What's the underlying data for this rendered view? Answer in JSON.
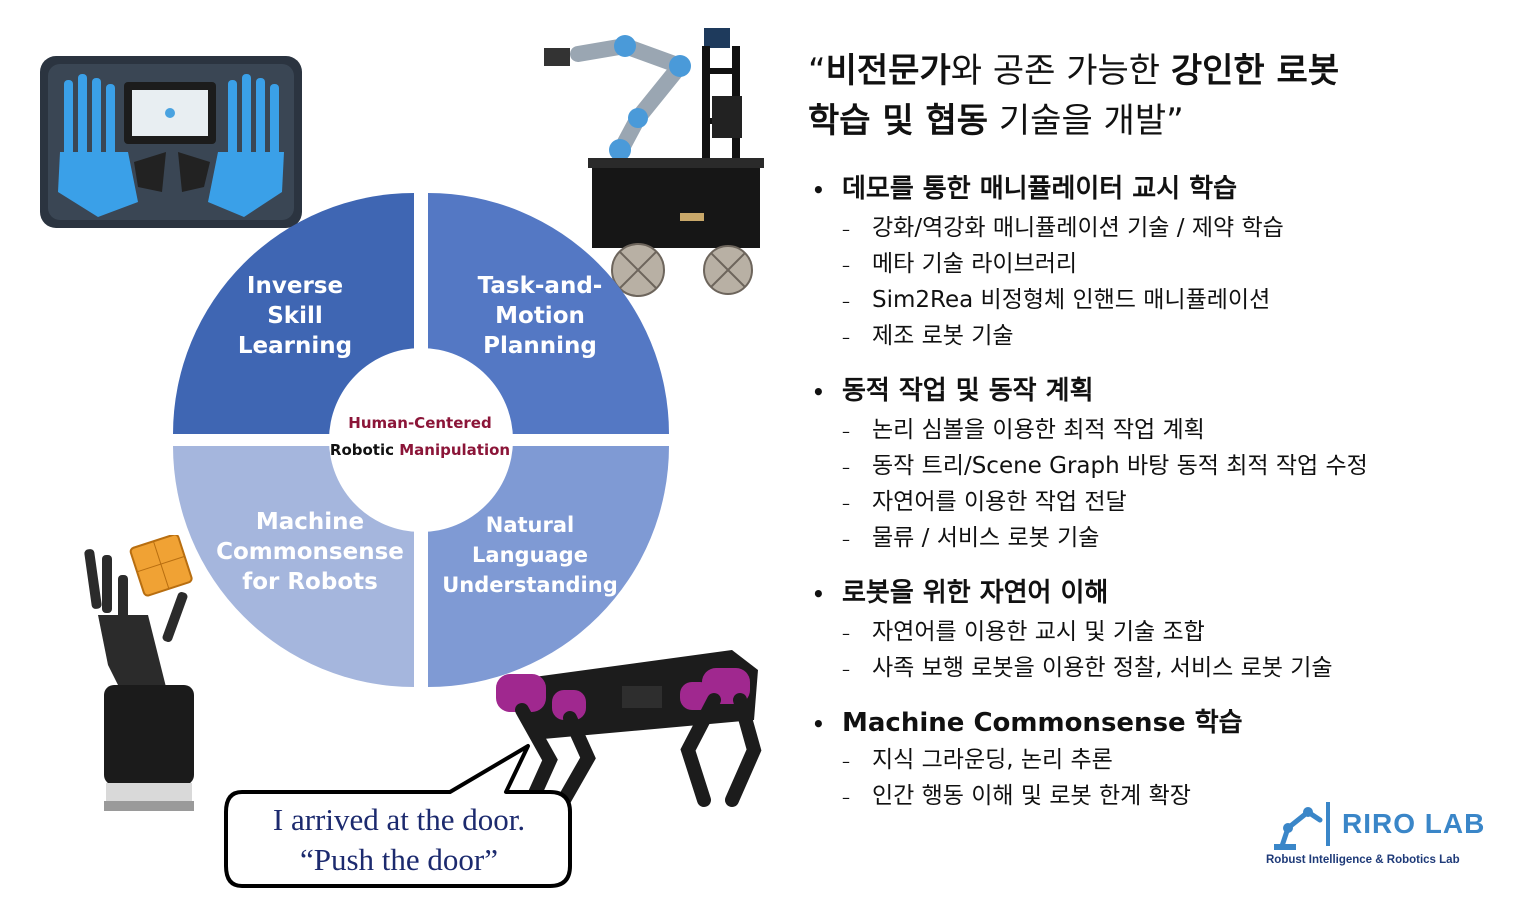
{
  "diagram": {
    "quadrants": [
      {
        "label": "Inverse\nSkill\nLearning",
        "color": "#3f66b3"
      },
      {
        "label": "Task-and-\nMotion\nPlanning",
        "color": "#5478c4"
      },
      {
        "label": "Machine\nCommonsense\nfor Robots",
        "color": "#a5b6dd"
      },
      {
        "label": "Natural Language\nUnderstanding",
        "color": "#7f9ad4"
      }
    ],
    "center_line1": "Human-Centered",
    "center_line2_a": "Robotic ",
    "center_line2_b": "Manipulation"
  },
  "bubble": {
    "line1": "I arrived at the door.",
    "line2": "“Push the door”"
  },
  "headline": {
    "q_open": "“",
    "bold1": "비전문가",
    "t1": "와 공존 가능한 ",
    "bold2": "강인한 로봇",
    "bold3": "학습 및 협동",
    "t2": " 기술을 개발”"
  },
  "sections": [
    {
      "title": "데모를 통한 매니퓰레이터 교시 학습",
      "items": [
        "강화/역강화 매니퓰레이션 기술 / 제약 학습",
        "메타 기술 라이브러리",
        "Sim2Rea 비정형체 인핸드 매니퓰레이션",
        "제조 로봇 기술"
      ]
    },
    {
      "title": "동적 작업 및 동작 계획",
      "items": [
        "논리 심볼을 이용한 최적 작업 계획",
        "동작 트리/Scene Graph 바탕 동적 최적 작업 수정",
        "자연어를 이용한 작업 전달",
        "물류 / 서비스 로봇 기술"
      ]
    },
    {
      "title": "로봇을 위한 자연어 이해",
      "items": [
        "자연어를 이용한 교시 및  기술 조합",
        "사족 보행 로봇을 이용한 정찰, 서비스 로봇 기술"
      ]
    },
    {
      "title": "Machine Commonsense 학습",
      "items": [
        "지식 그라운딩, 논리 추론",
        "인간 행동 이해 및 로봇 한계 확장"
      ]
    }
  ],
  "bullet_symbol": "•",
  "dash_symbol": "–",
  "logo": {
    "title": "RIRO LAB",
    "subtitle": "Robust Intelligence & Robotics Lab"
  }
}
